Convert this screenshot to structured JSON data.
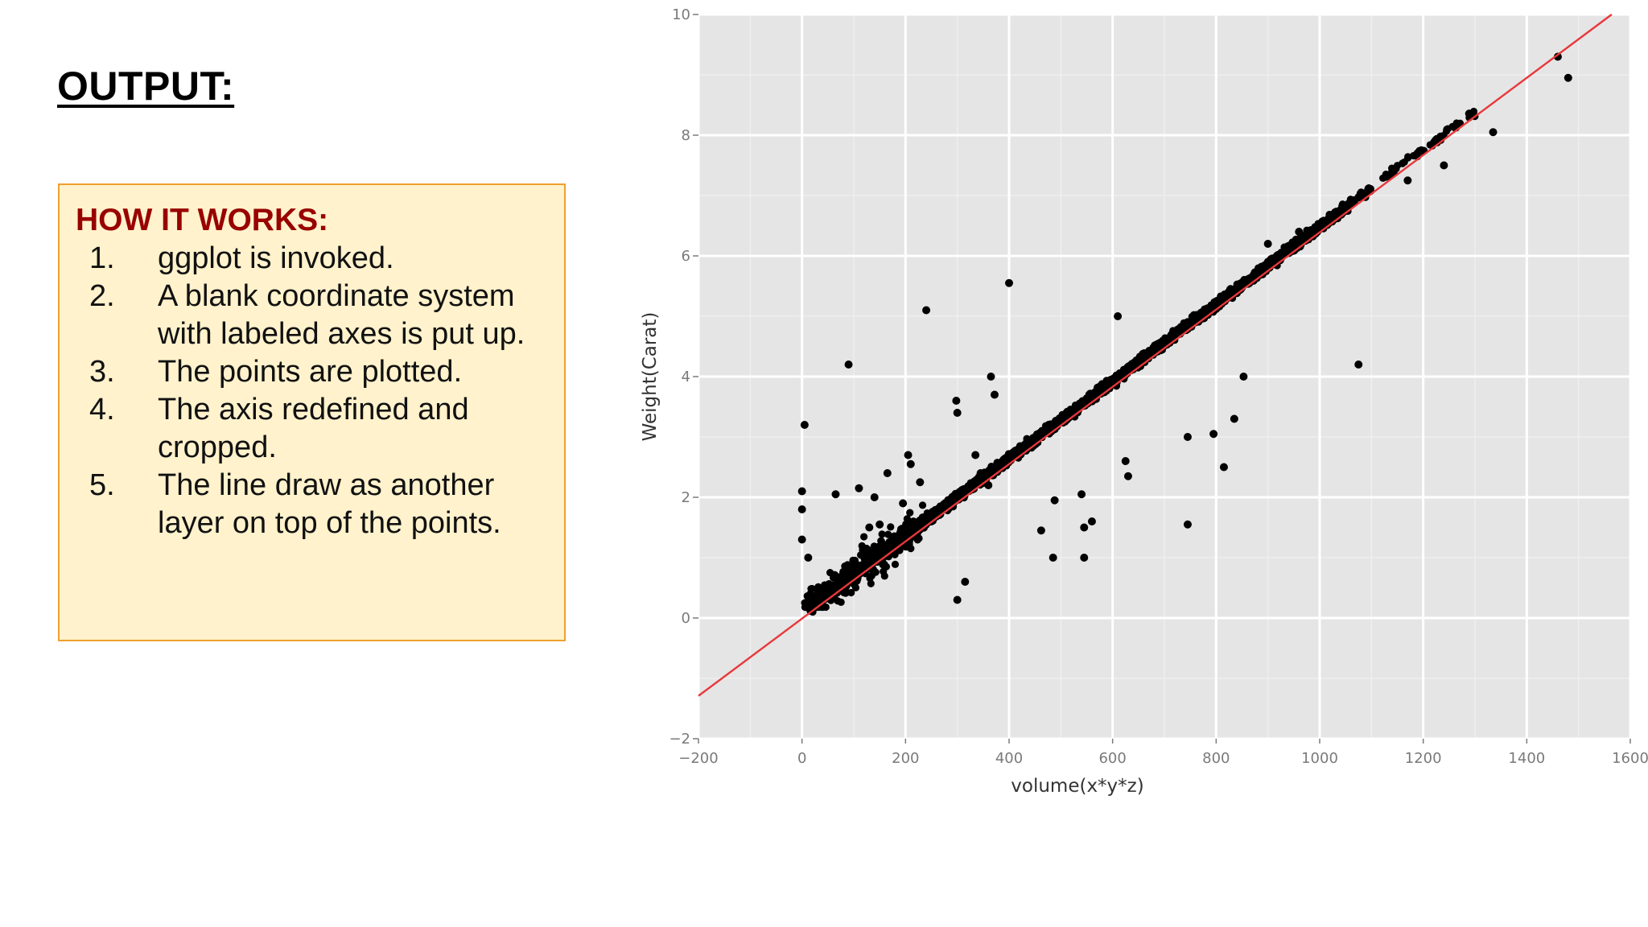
{
  "slide": {
    "title": "OUTPUT:"
  },
  "info_box": {
    "heading": "HOW IT WORKS:",
    "steps": [
      {
        "num": "1.",
        "text": "ggplot is invoked."
      },
      {
        "num": "2.",
        "text": "A blank coordinate system with labeled axes is put up."
      },
      {
        "num": "3.",
        "text": "The points are plotted."
      },
      {
        "num": "4.",
        "text": "The axis redefined and cropped."
      },
      {
        "num": "5.",
        "text": "The line draw as another layer on top of the points."
      }
    ]
  },
  "colors": {
    "panel_bg": "#e5e5e5",
    "grid_major": "#ffffff",
    "grid_minor": "#efefef",
    "points": "#000000",
    "fit_line": "#e8383b",
    "box_bg": "#fff2cc",
    "box_border": "#f0a030",
    "heading": "#990000"
  },
  "chart_data": {
    "type": "scatter",
    "title": "",
    "xlabel": "volume(x*y*z)",
    "ylabel": "Weight(Carat)",
    "xlim": [
      -200,
      1600
    ],
    "ylim": [
      -2,
      10
    ],
    "x_ticks": [
      "−200",
      "0",
      "200",
      "400",
      "600",
      "800",
      "1000",
      "1200",
      "1400",
      "1600"
    ],
    "y_ticks": [
      "−2",
      "0",
      "2",
      "4",
      "6",
      "8",
      "10"
    ],
    "grid": true,
    "trend_line": {
      "slope": 0.0064,
      "intercept": -0.01
    },
    "outliers": [
      {
        "x": 5,
        "y": 3.2
      },
      {
        "x": 90,
        "y": 4.2
      },
      {
        "x": 240,
        "y": 5.1
      },
      {
        "x": 400,
        "y": 5.55
      },
      {
        "x": 365,
        "y": 4.0
      },
      {
        "x": 372,
        "y": 3.7
      },
      {
        "x": 298,
        "y": 3.6
      },
      {
        "x": 300,
        "y": 3.4
      },
      {
        "x": 610,
        "y": 5.0
      },
      {
        "x": 1075,
        "y": 4.2
      },
      {
        "x": 835,
        "y": 3.3
      },
      {
        "x": 853,
        "y": 4.0
      },
      {
        "x": 745,
        "y": 3.0
      },
      {
        "x": 795,
        "y": 3.05
      },
      {
        "x": 815,
        "y": 2.5
      },
      {
        "x": 745,
        "y": 1.55
      },
      {
        "x": 625,
        "y": 2.6
      },
      {
        "x": 630,
        "y": 2.35
      },
      {
        "x": 540,
        "y": 2.05
      },
      {
        "x": 560,
        "y": 1.6
      },
      {
        "x": 545,
        "y": 1.5
      },
      {
        "x": 488,
        "y": 1.95
      },
      {
        "x": 462,
        "y": 1.45
      },
      {
        "x": 485,
        "y": 1.0
      },
      {
        "x": 545,
        "y": 1.0
      },
      {
        "x": 300,
        "y": 0.3
      },
      {
        "x": 315,
        "y": 0.6
      },
      {
        "x": 0,
        "y": 2.1
      },
      {
        "x": 0,
        "y": 1.8
      },
      {
        "x": 0,
        "y": 1.3
      },
      {
        "x": 12,
        "y": 1.0
      },
      {
        "x": 65,
        "y": 2.05
      },
      {
        "x": 110,
        "y": 2.15
      },
      {
        "x": 140,
        "y": 2.0
      },
      {
        "x": 165,
        "y": 2.4
      },
      {
        "x": 205,
        "y": 2.7
      },
      {
        "x": 210,
        "y": 2.55
      },
      {
        "x": 228,
        "y": 2.25
      },
      {
        "x": 195,
        "y": 1.9
      },
      {
        "x": 150,
        "y": 1.55
      },
      {
        "x": 130,
        "y": 1.5
      },
      {
        "x": 250,
        "y": 1.6
      },
      {
        "x": 335,
        "y": 2.7
      },
      {
        "x": 345,
        "y": 2.4
      },
      {
        "x": 360,
        "y": 2.2
      },
      {
        "x": 900,
        "y": 6.2
      },
      {
        "x": 1170,
        "y": 7.25
      },
      {
        "x": 1240,
        "y": 7.5
      },
      {
        "x": 1335,
        "y": 8.05
      },
      {
        "x": 1480,
        "y": 8.95
      },
      {
        "x": 1460,
        "y": 9.3
      },
      {
        "x": 960,
        "y": 6.4
      }
    ],
    "series": [
      {
        "type": "scatter",
        "description": "main cluster about the line from (10, 0.3) to (1300, 8.1)"
      }
    ]
  }
}
